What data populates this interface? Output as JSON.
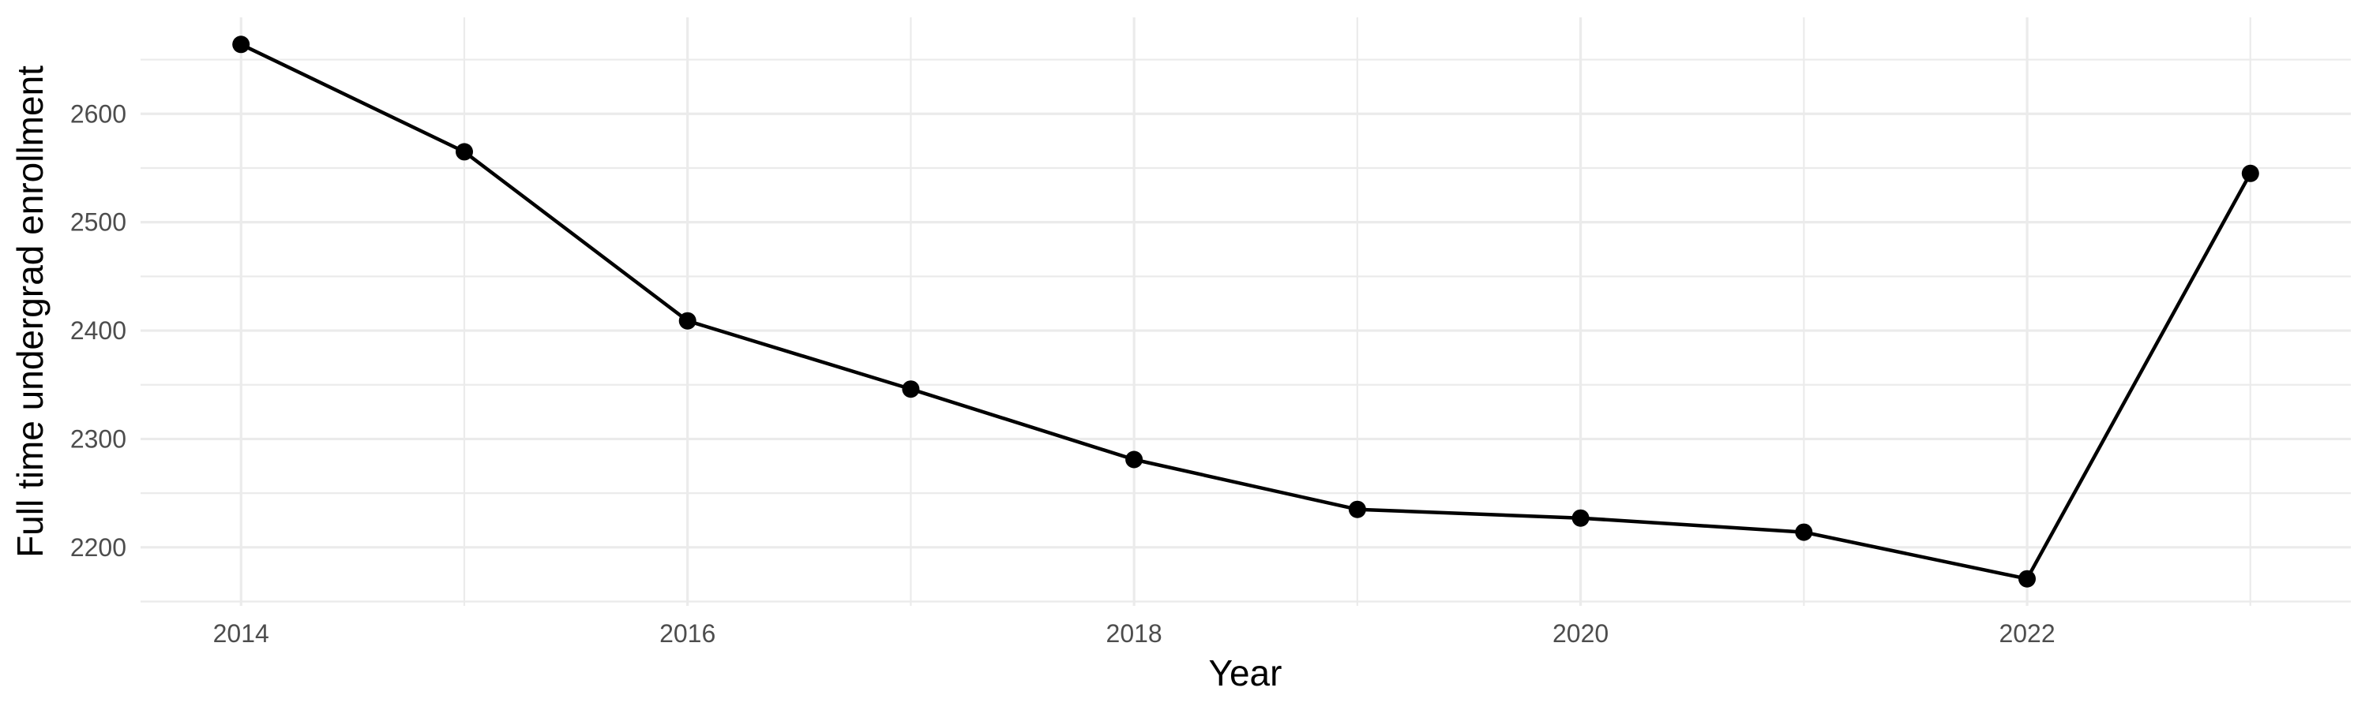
{
  "chart_data": {
    "type": "line",
    "title": "",
    "xlabel": "Year",
    "ylabel": "Full time undergrad enrollment",
    "x": [
      2014,
      2015,
      2016,
      2017,
      2018,
      2019,
      2020,
      2021,
      2022,
      2023
    ],
    "series": [
      {
        "name": "Full time undergrad enrollment",
        "values": [
          2664,
          2565,
          2409,
          2346,
          2281,
          2235,
          2227,
          2214,
          2171,
          2545
        ]
      }
    ],
    "xlim": [
      2013.55,
      2023.45
    ],
    "ylim": [
      2146,
      2689
    ],
    "x_major_breaks": [
      2014,
      2016,
      2018,
      2020,
      2022
    ],
    "x_major_labels": [
      "2014",
      "2016",
      "2018",
      "2020",
      "2022"
    ],
    "x_minor_breaks": [
      2015,
      2017,
      2019,
      2021,
      2023
    ],
    "y_major_breaks": [
      2200,
      2300,
      2400,
      2500,
      2600
    ],
    "y_major_labels": [
      "2200",
      "2300",
      "2400",
      "2500",
      "2600"
    ],
    "y_minor_breaks": [
      2150,
      2250,
      2350,
      2450,
      2550,
      2650
    ],
    "grid": true,
    "legend_position": "none",
    "point_marker": "filled-circle",
    "colors": {
      "line": "#000000",
      "point": "#000000",
      "grid_major": "#EBEBEB",
      "grid_minor": "#EBEBEB",
      "tick_label": "#4D4D4D",
      "axis_title": "#000000",
      "background": "#FFFFFF"
    }
  }
}
